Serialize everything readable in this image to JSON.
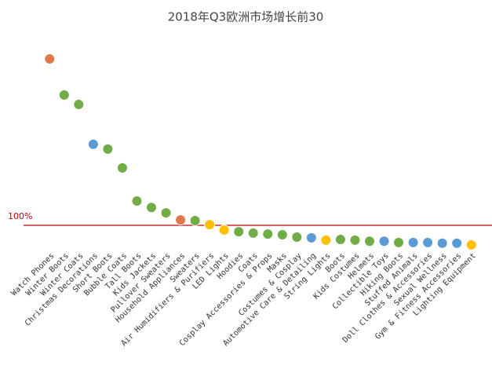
{
  "chart_data": {
    "type": "scatter",
    "title": "2018年Q3欧洲市场增长前30",
    "categories": [
      "Watch Phones",
      "Winter Boots",
      "Winter Coats",
      "Christmas Decorations",
      "Short Boots",
      "Bubble Coats",
      "Tall Boots",
      "Kids Jackets",
      "Pullover Sweaters",
      "Household Appliances",
      "Sweaters",
      "Air Humidifiers & Purifiers",
      "LED Lights",
      "Hoodies",
      "Coats",
      "Cosplay Accessories & Props",
      "Masks",
      "Costumes & Cosplay",
      "Automotive Care & Detailing",
      "String Lights",
      "Boots",
      "Kids Costumes",
      "Helmets",
      "Collectible Toys",
      "Hiking Boots",
      "Stuffed Animals",
      "Doll Clothes & Accessories",
      "Sexual Wellness",
      "Gym & Fitness Accessories",
      "Lighting Equipment"
    ],
    "values": [
      593,
      486,
      458,
      340,
      326,
      270,
      172,
      153,
      137,
      116,
      114,
      102,
      86,
      81,
      77,
      74,
      72,
      65,
      63,
      56,
      58,
      56,
      53,
      53,
      49,
      49,
      49,
      47,
      47,
      42
    ],
    "colors": [
      "#e0784a",
      "#70ad47",
      "#70ad47",
      "#5b9bd5",
      "#70ad47",
      "#70ad47",
      "#70ad47",
      "#70ad47",
      "#70ad47",
      "#e0784a",
      "#70ad47",
      "#ffc000",
      "#ffc000",
      "#70ad47",
      "#70ad47",
      "#70ad47",
      "#70ad47",
      "#70ad47",
      "#5b9bd5",
      "#ffc000",
      "#70ad47",
      "#70ad47",
      "#70ad47",
      "#5b9bd5",
      "#70ad47",
      "#5b9bd5",
      "#5b9bd5",
      "#5b9bd5",
      "#5b9bd5",
      "#ffc000"
    ],
    "ylim": [
      0,
      700
    ],
    "reference_line": {
      "value": 100,
      "label": "100%",
      "color": "#c00000"
    }
  }
}
